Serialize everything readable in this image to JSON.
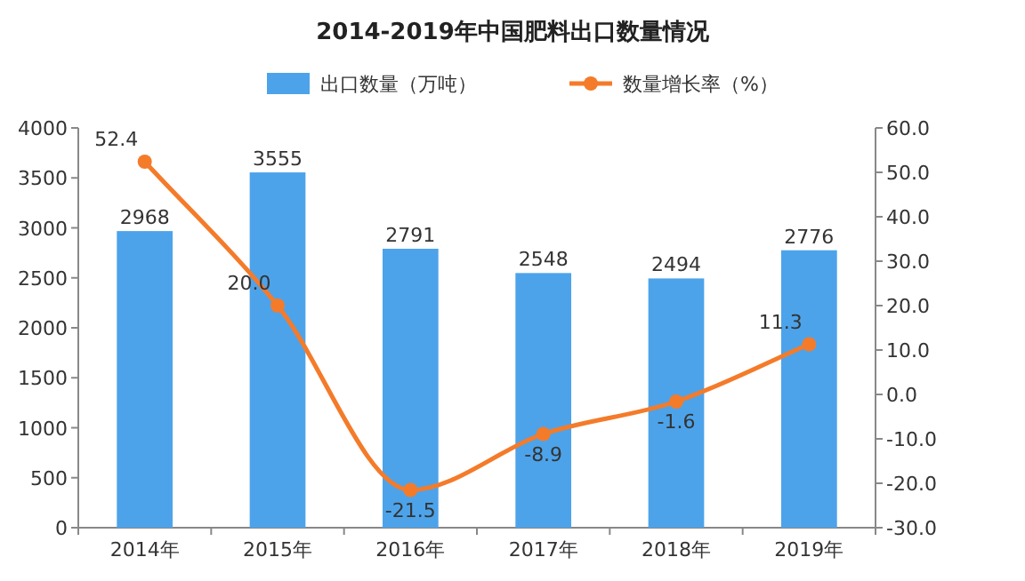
{
  "chart_data": {
    "type": "bar",
    "title": "2014-2019年中国肥料出口数量情况",
    "categories": [
      "2014年",
      "2015年",
      "2016年",
      "2017年",
      "2018年",
      "2019年"
    ],
    "series": [
      {
        "name": "出口数量（万吨）",
        "color": "#4da3ea",
        "values": [
          2968,
          3555,
          2791,
          2548,
          2494,
          2776
        ]
      },
      {
        "name": "数量增长率（%）",
        "type": "line",
        "axis": "y2",
        "color": "#f47b2a",
        "values": [
          52.4,
          20.0,
          -21.5,
          -8.9,
          -1.6,
          11.3
        ],
        "value_labels": [
          "52.4",
          "20.0",
          "-21.5",
          "-8.9",
          "-1.6",
          "11.3"
        ]
      }
    ],
    "data_labels": true,
    "marker": "circle",
    "legend": "top",
    "grid": false,
    "ylim": [
      0,
      4000
    ],
    "yticks": [
      0,
      500,
      1000,
      1500,
      2000,
      2500,
      3000,
      3500,
      4000
    ],
    "y2lim": [
      -30,
      60
    ],
    "y2ticks": [
      {
        "value": -30,
        "label": "-30.0"
      },
      {
        "value": -20,
        "label": "-20.0"
      },
      {
        "value": -10,
        "label": "-10.0"
      },
      {
        "value": 0,
        "label": "0.0"
      },
      {
        "value": 10,
        "label": "10.0"
      },
      {
        "value": 20,
        "label": "20.0"
      },
      {
        "value": 30,
        "label": "30.0"
      },
      {
        "value": 40,
        "label": "40.0"
      },
      {
        "value": 50,
        "label": "50.0"
      },
      {
        "value": 60,
        "label": "60.0"
      }
    ]
  }
}
